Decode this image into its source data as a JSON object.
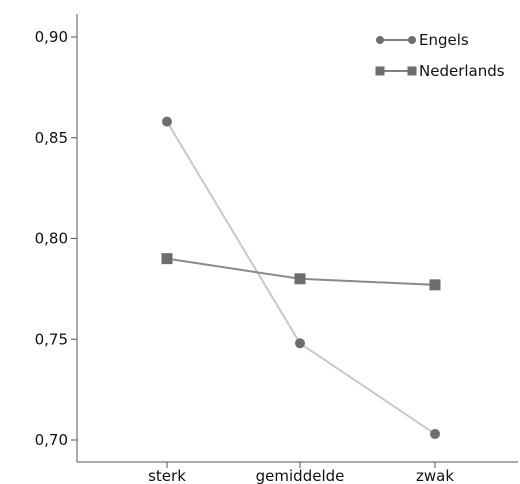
{
  "chart_data": {
    "type": "line",
    "title": "",
    "xlabel": "",
    "ylabel": "",
    "categories": [
      "sterk",
      "gemiddelde",
      "zwak"
    ],
    "y_ticks": [
      "0,70",
      "0,75",
      "0,80",
      "0,85",
      "0,90"
    ],
    "ylim": [
      0.695,
      0.915
    ],
    "grid": false,
    "legend_position": "top-right",
    "series": [
      {
        "name": "Engels",
        "marker": "circle",
        "color": "#6e6e6e",
        "line_color": "#c8c8c8",
        "values": [
          0.858,
          0.748,
          0.703
        ]
      },
      {
        "name": "Nederlands",
        "marker": "square",
        "color": "#6e6e6e",
        "line_color": "#8a8a8a",
        "values": [
          0.79,
          0.78,
          0.777
        ]
      }
    ]
  }
}
